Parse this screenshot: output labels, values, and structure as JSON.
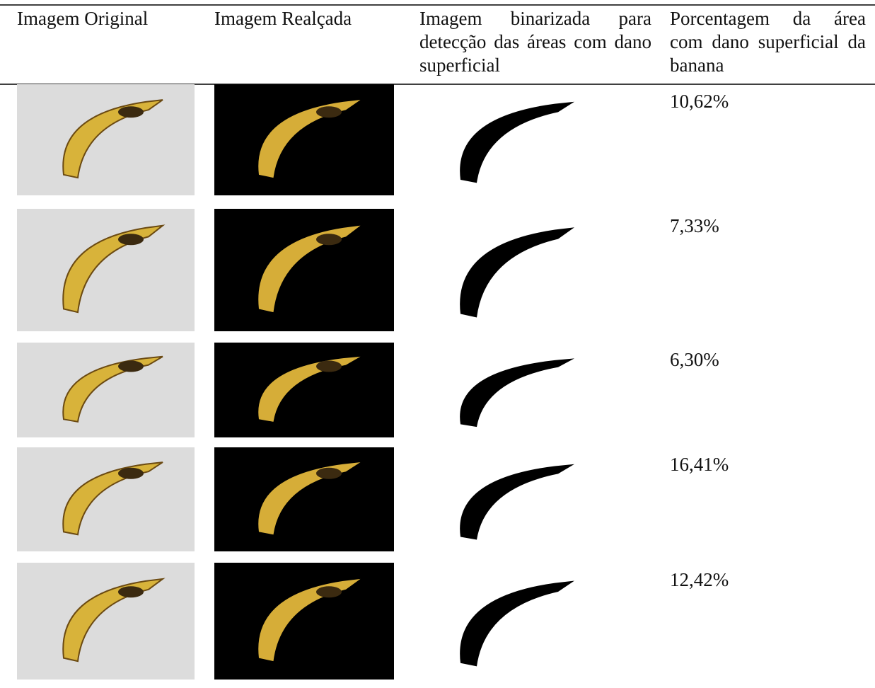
{
  "table": {
    "header": [
      "Imagem Original",
      "Imagem Realçada",
      "Imagem binarizada para detecção das áreas com dano superficial",
      "Porcentagem da área com dano superficial da banana"
    ],
    "rows": [
      "10,62%",
      "7,33%",
      "6,30%",
      "16,41%",
      "12,42%"
    ]
  }
}
